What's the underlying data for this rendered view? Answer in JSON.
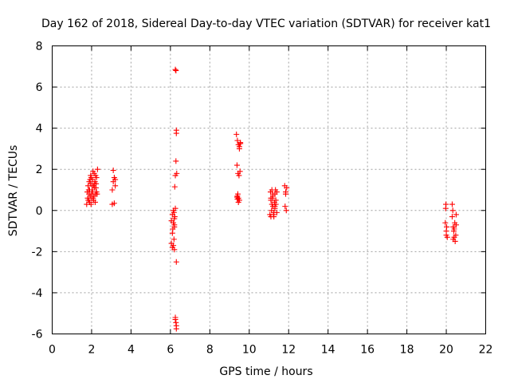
{
  "chart_data": {
    "type": "scatter",
    "title": "Day 162 of 2018, Sidereal Day-to-day VTEC variation (SDTVAR) for receiver kat1",
    "xlabel": "GPS time / hours",
    "ylabel": "SDTVAR / TECUs",
    "xlim": [
      0,
      22
    ],
    "ylim": [
      -6,
      8
    ],
    "xticks": [
      "0",
      "2",
      "4",
      "6",
      "8",
      "10",
      "12",
      "14",
      "16",
      "18",
      "20",
      "22"
    ],
    "yticks": [
      "-6",
      "-4",
      "-2",
      "0",
      "2",
      "4",
      "6",
      "8"
    ],
    "grid": true,
    "marker": "plus",
    "color": "#ff0000",
    "series": [
      {
        "name": "kat1",
        "x": [
          1.75,
          1.8,
          1.85,
          1.9,
          1.95,
          2.0,
          2.05,
          2.1,
          2.15,
          2.2,
          2.25,
          2.3,
          1.78,
          1.83,
          1.88,
          1.93,
          1.98,
          2.03,
          2.08,
          2.13,
          2.18,
          2.23,
          2.28,
          1.82,
          1.87,
          1.92,
          1.97,
          2.02,
          2.07,
          2.12,
          2.17,
          2.22,
          1.85,
          1.95,
          2.05,
          2.15,
          2.25,
          1.9,
          2.0,
          2.1,
          2.2,
          3.05,
          3.1,
          3.15,
          3.2,
          3.1,
          3.15,
          3.05,
          3.2,
          6.05,
          6.1,
          6.15,
          6.2,
          6.25,
          6.1,
          6.15,
          6.2,
          6.05,
          6.1,
          6.15,
          6.2,
          6.12,
          6.18,
          6.22,
          6.25,
          6.28,
          6.3,
          6.3,
          6.28,
          6.32,
          6.25,
          6.22,
          6.3,
          6.25,
          6.3,
          6.28,
          6.3,
          6.25,
          6.2,
          6.18,
          9.35,
          9.4,
          9.45,
          9.5,
          9.55,
          9.38,
          9.43,
          9.48,
          9.53,
          9.4,
          9.45,
          9.5,
          9.42,
          9.38,
          9.45,
          9.5,
          9.55,
          9.4,
          11.05,
          11.1,
          11.15,
          11.2,
          11.25,
          11.3,
          11.35,
          11.4,
          11.08,
          11.13,
          11.18,
          11.23,
          11.28,
          11.33,
          11.1,
          11.2,
          11.3,
          11.4,
          11.15,
          11.25,
          11.35,
          11.1,
          11.2,
          11.3,
          11.8,
          11.85,
          11.9,
          11.82,
          11.88,
          11.85,
          19.95,
          20.0,
          20.05,
          19.98,
          20.02,
          20.0,
          19.97,
          20.3,
          20.35,
          20.4,
          20.45,
          20.5,
          20.33,
          20.38,
          20.43,
          20.48,
          20.3,
          20.4,
          20.5,
          20.35
        ],
        "y": [
          0.3,
          0.6,
          1.0,
          0.4,
          1.3,
          0.8,
          1.5,
          0.5,
          1.1,
          1.7,
          0.9,
          2.0,
          0.9,
          0.5,
          1.4,
          0.7,
          1.6,
          1.2,
          0.6,
          1.8,
          0.4,
          1.3,
          0.8,
          1.2,
          0.8,
          1.5,
          0.3,
          1.0,
          1.9,
          0.7,
          1.4,
          1.1,
          0.5,
          1.7,
          0.9,
          1.3,
          1.6,
          1.0,
          0.6,
          1.2,
          0.8,
          0.3,
          1.4,
          1.6,
          1.2,
          1.95,
          0.35,
          1.0,
          1.5,
          -0.5,
          -0.2,
          0.0,
          -0.8,
          0.1,
          -1.1,
          -0.6,
          -0.4,
          -1.6,
          -1.8,
          -1.7,
          -1.9,
          -0.9,
          -0.1,
          -0.3,
          6.85,
          6.8,
          3.9,
          3.75,
          2.4,
          1.8,
          1.7,
          1.15,
          -2.5,
          -5.2,
          -5.6,
          -5.45,
          -5.75,
          -5.3,
          -0.7,
          -1.4,
          3.7,
          3.4,
          3.2,
          3.0,
          3.3,
          2.2,
          1.8,
          1.7,
          1.9,
          0.7,
          0.6,
          0.5,
          0.8,
          0.65,
          0.4,
          3.1,
          3.25,
          0.55,
          -0.2,
          0.5,
          1.0,
          0.2,
          -0.3,
          0.8,
          0.3,
          -0.1,
          0.9,
          0.0,
          0.6,
          -0.2,
          0.4,
          1.0,
          -0.3,
          0.7,
          0.1,
          0.9,
          0.3,
          -0.1,
          0.5,
          0.6,
          0.8,
          0.2,
          1.2,
          0.9,
          1.1,
          0.2,
          0.0,
          0.8,
          -0.6,
          -1.0,
          -1.3,
          0.3,
          -0.8,
          -1.2,
          0.1,
          0.3,
          -0.8,
          -1.3,
          -1.5,
          -0.2,
          0.0,
          -1.0,
          -0.6,
          -1.2,
          -0.3,
          -0.9,
          -0.7,
          -1.4
        ]
      }
    ]
  }
}
